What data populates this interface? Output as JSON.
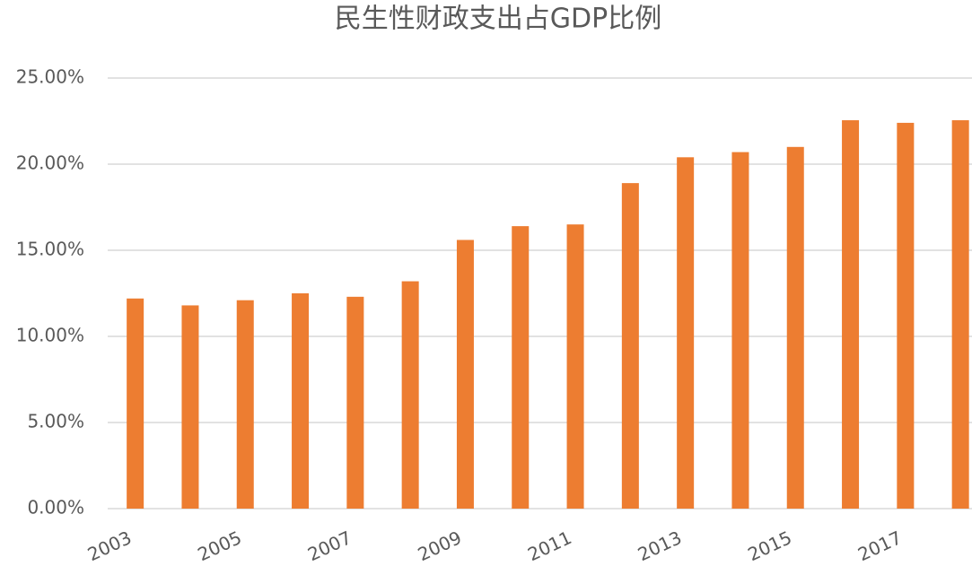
{
  "chart_data": {
    "type": "bar",
    "title": "民生性财政支出占GDP比例",
    "categories": [
      "2003",
      null,
      "2005",
      null,
      "2007",
      null,
      "2009",
      null,
      "2011",
      null,
      "2013",
      null,
      "2015",
      null,
      "2017",
      null
    ],
    "values": [
      12.2,
      11.8,
      12.1,
      12.5,
      12.3,
      13.2,
      15.6,
      16.4,
      16.5,
      18.9,
      20.4,
      20.7,
      21.0,
      22.55,
      22.4,
      22.55
    ],
    "color": "#ed7d31",
    "ylim": [
      0,
      25
    ],
    "yticks": [
      {
        "value": 0,
        "label": "0.00%"
      },
      {
        "value": 5,
        "label": "5.00%"
      },
      {
        "value": 10,
        "label": "10.00%"
      },
      {
        "value": 15,
        "label": "15.00%"
      },
      {
        "value": 20,
        "label": "20.00%"
      },
      {
        "value": 25,
        "label": "25.00%"
      }
    ],
    "grid": true
  }
}
